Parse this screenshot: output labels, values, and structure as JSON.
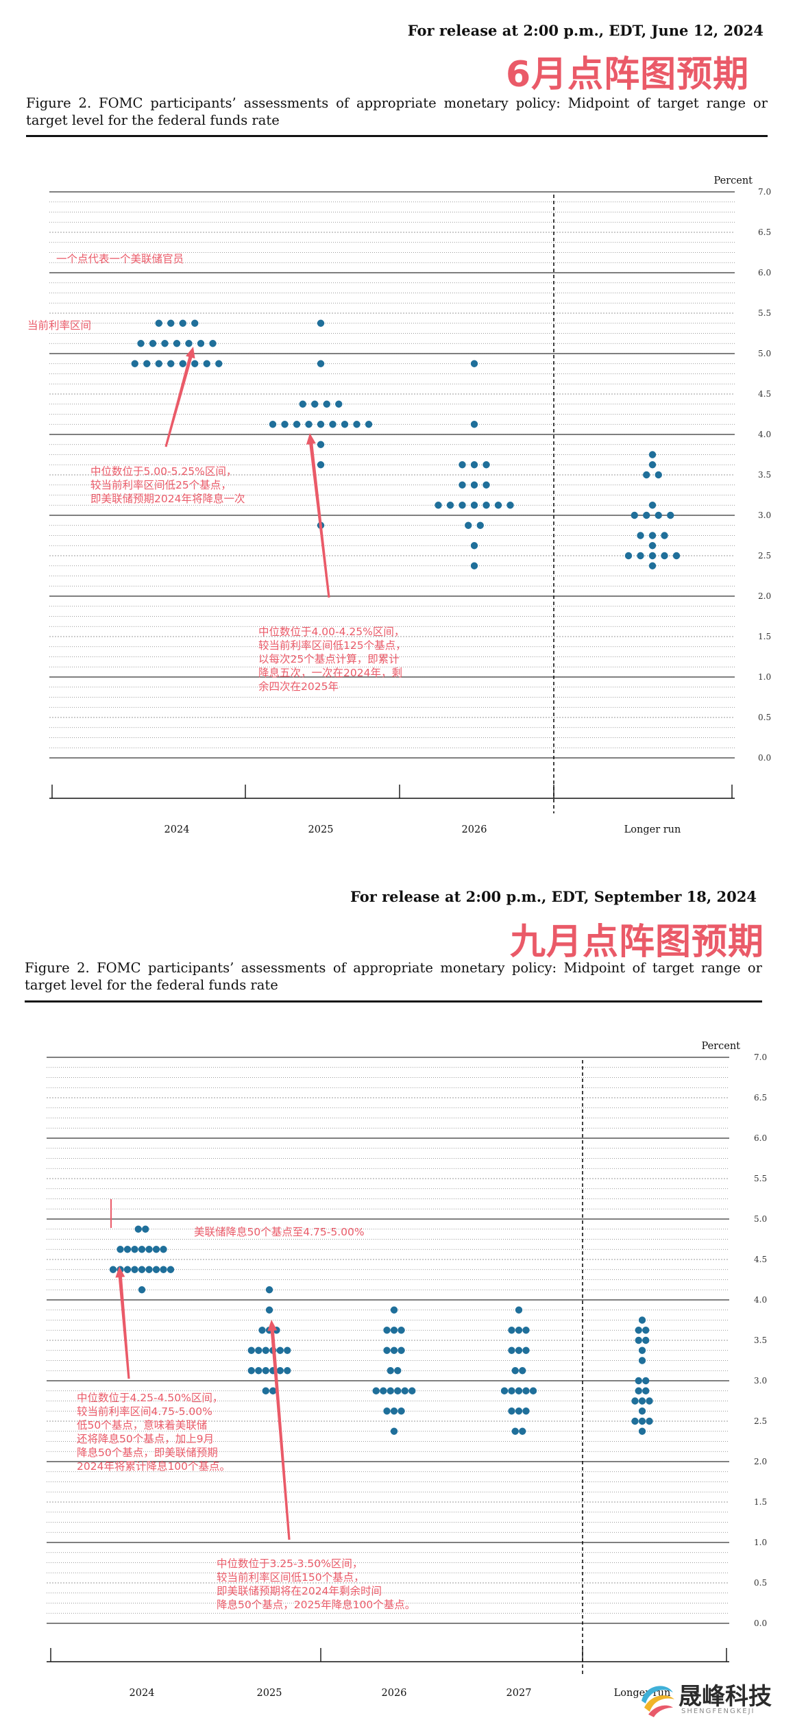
{
  "header_june": {
    "release": "For release at 2:00 p.m., EDT, June 12, 2024",
    "headline": "6月点阵图预期",
    "caption": "Figure 2.  FOMC participants’ assessments of appropriate monetary policy:  Midpoint of target range or target level for the federal funds rate"
  },
  "header_september": {
    "release": "For release at 2:00 p.m., EDT, September 18, 2024",
    "headline": "九月点阵图预期",
    "caption": "Figure 2.  FOMC participants’ assessments of appropriate monetary policy:  Midpoint of target range or target level for the federal funds rate"
  },
  "annotations_june": {
    "one_dot": "一个点代表一个美联储官员",
    "current_range": "当前利率区间",
    "note_2024": "中位数位于5.00-5.25%区间，\n较当前利率区间低25个基点，\n即美联储预期2024年将降息一次",
    "note_2025": "中位数位于4.00-4.25%区间，\n较当前利率区间低125个基点，\n以每次25个基点计算，即累计\n降息五次，一次在2024年，剩\n余四次在2025年"
  },
  "annotations_september": {
    "cut_50": "美联储降息50个基点至4.75-5.00%",
    "note_2024": "中位数位于4.25-4.50%区间，\n较当前利率区间4.75-5.00%\n低50个基点，意味着美联储\n还将降息50个基点，加上9月\n降息50个基点，即美联储预期\n2024年将累计降息100个基点。",
    "note_2025": "中位数位于3.25-3.50%区间，\n较当前利率区间低150个基点，\n即美联储预期将在2024年剩余时间\n降息50个基点，2025年降息100个基点。"
  },
  "logo": {
    "main": "晟峰科技",
    "sub": "SHENGFENGKEJI"
  },
  "colors": {
    "dot": "#1f6f9a",
    "annotation": "#ea5a68",
    "text": "#111111"
  },
  "chart_data": [
    {
      "type": "scatter",
      "title": "",
      "xlabel": "",
      "ylabel": "Percent",
      "ylim": [
        0,
        7
      ],
      "yticks": [
        "0.0",
        "0.5",
        "1.0",
        "1.5",
        "2.0",
        "2.5",
        "3.0",
        "3.5",
        "4.0",
        "4.5",
        "5.0",
        "5.5",
        "6.0",
        "6.5",
        "7.0"
      ],
      "grid": true,
      "categories": [
        "2024",
        "2025",
        "2026",
        "Longer run"
      ],
      "dots": [
        {
          "x": "2024",
          "y": 5.375,
          "count": 4
        },
        {
          "x": "2024",
          "y": 5.125,
          "count": 7
        },
        {
          "x": "2024",
          "y": 4.875,
          "count": 8
        },
        {
          "x": "2025",
          "y": 5.375,
          "count": 1
        },
        {
          "x": "2025",
          "y": 4.875,
          "count": 1
        },
        {
          "x": "2025",
          "y": 4.375,
          "count": 4
        },
        {
          "x": "2025",
          "y": 4.125,
          "count": 9
        },
        {
          "x": "2025",
          "y": 3.875,
          "count": 1
        },
        {
          "x": "2025",
          "y": 3.625,
          "count": 1
        },
        {
          "x": "2025",
          "y": 2.875,
          "count": 1
        },
        {
          "x": "2026",
          "y": 4.875,
          "count": 1
        },
        {
          "x": "2026",
          "y": 4.125,
          "count": 1
        },
        {
          "x": "2026",
          "y": 3.625,
          "count": 3
        },
        {
          "x": "2026",
          "y": 3.375,
          "count": 3
        },
        {
          "x": "2026",
          "y": 3.125,
          "count": 7
        },
        {
          "x": "2026",
          "y": 2.875,
          "count": 2
        },
        {
          "x": "2026",
          "y": 2.625,
          "count": 1
        },
        {
          "x": "2026",
          "y": 2.375,
          "count": 1
        },
        {
          "x": "Longer run",
          "y": 3.75,
          "count": 1
        },
        {
          "x": "Longer run",
          "y": 3.625,
          "count": 1
        },
        {
          "x": "Longer run",
          "y": 3.5,
          "count": 2
        },
        {
          "x": "Longer run",
          "y": 3.125,
          "count": 1
        },
        {
          "x": "Longer run",
          "y": 3.0,
          "count": 4
        },
        {
          "x": "Longer run",
          "y": 2.75,
          "count": 3
        },
        {
          "x": "Longer run",
          "y": 2.625,
          "count": 1
        },
        {
          "x": "Longer run",
          "y": 2.5,
          "count": 5
        },
        {
          "x": "Longer run",
          "y": 2.375,
          "count": 1
        }
      ]
    },
    {
      "type": "scatter",
      "title": "",
      "xlabel": "",
      "ylabel": "Percent",
      "ylim": [
        0,
        7
      ],
      "yticks": [
        "0.0",
        "0.5",
        "1.0",
        "1.5",
        "2.0",
        "2.5",
        "3.0",
        "3.5",
        "4.0",
        "4.5",
        "5.0",
        "5.5",
        "6.0",
        "6.5",
        "7.0"
      ],
      "grid": true,
      "categories": [
        "2024",
        "2025",
        "2026",
        "2027",
        "Longer run"
      ],
      "dots": [
        {
          "x": "2024",
          "y": 4.875,
          "count": 2
        },
        {
          "x": "2024",
          "y": 4.625,
          "count": 7
        },
        {
          "x": "2024",
          "y": 4.375,
          "count": 9
        },
        {
          "x": "2024",
          "y": 4.125,
          "count": 1
        },
        {
          "x": "2025",
          "y": 4.125,
          "count": 1
        },
        {
          "x": "2025",
          "y": 3.875,
          "count": 1
        },
        {
          "x": "2025",
          "y": 3.625,
          "count": 3
        },
        {
          "x": "2025",
          "y": 3.375,
          "count": 6
        },
        {
          "x": "2025",
          "y": 3.125,
          "count": 6
        },
        {
          "x": "2025",
          "y": 2.875,
          "count": 2
        },
        {
          "x": "2026",
          "y": 3.875,
          "count": 1
        },
        {
          "x": "2026",
          "y": 3.625,
          "count": 3
        },
        {
          "x": "2026",
          "y": 3.375,
          "count": 3
        },
        {
          "x": "2026",
          "y": 3.125,
          "count": 2
        },
        {
          "x": "2026",
          "y": 2.875,
          "count": 6
        },
        {
          "x": "2026",
          "y": 2.625,
          "count": 3
        },
        {
          "x": "2026",
          "y": 2.375,
          "count": 1
        },
        {
          "x": "2027",
          "y": 3.875,
          "count": 1
        },
        {
          "x": "2027",
          "y": 3.625,
          "count": 3
        },
        {
          "x": "2027",
          "y": 3.375,
          "count": 3
        },
        {
          "x": "2027",
          "y": 3.125,
          "count": 2
        },
        {
          "x": "2027",
          "y": 2.875,
          "count": 5
        },
        {
          "x": "2027",
          "y": 2.625,
          "count": 3
        },
        {
          "x": "2027",
          "y": 2.375,
          "count": 2
        },
        {
          "x": "Longer run",
          "y": 3.75,
          "count": 1
        },
        {
          "x": "Longer run",
          "y": 3.625,
          "count": 2
        },
        {
          "x": "Longer run",
          "y": 3.5,
          "count": 2
        },
        {
          "x": "Longer run",
          "y": 3.375,
          "count": 1
        },
        {
          "x": "Longer run",
          "y": 3.25,
          "count": 1
        },
        {
          "x": "Longer run",
          "y": 3.0,
          "count": 2
        },
        {
          "x": "Longer run",
          "y": 2.875,
          "count": 2
        },
        {
          "x": "Longer run",
          "y": 2.75,
          "count": 3
        },
        {
          "x": "Longer run",
          "y": 2.625,
          "count": 1
        },
        {
          "x": "Longer run",
          "y": 2.5,
          "count": 3
        },
        {
          "x": "Longer run",
          "y": 2.375,
          "count": 1
        }
      ]
    }
  ]
}
